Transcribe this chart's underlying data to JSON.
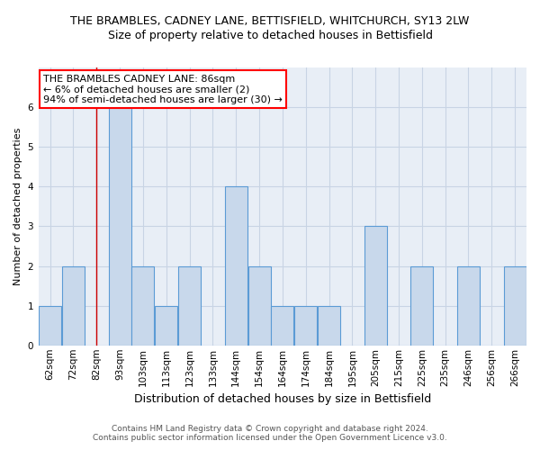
{
  "title": "THE BRAMBLES, CADNEY LANE, BETTISFIELD, WHITCHURCH, SY13 2LW",
  "subtitle": "Size of property relative to detached houses in Bettisfield",
  "xlabel": "Distribution of detached houses by size in Bettisfield",
  "ylabel": "Number of detached properties",
  "footnote1": "Contains HM Land Registry data © Crown copyright and database right 2024.",
  "footnote2": "Contains public sector information licensed under the Open Government Licence v3.0.",
  "bar_labels": [
    "62sqm",
    "72sqm",
    "82sqm",
    "93sqm",
    "103sqm",
    "113sqm",
    "123sqm",
    "133sqm",
    "144sqm",
    "154sqm",
    "164sqm",
    "174sqm",
    "184sqm",
    "195sqm",
    "205sqm",
    "215sqm",
    "225sqm",
    "235sqm",
    "246sqm",
    "256sqm",
    "266sqm"
  ],
  "bar_heights": [
    1,
    2,
    0,
    6,
    2,
    1,
    2,
    0,
    4,
    2,
    1,
    1,
    1,
    0,
    3,
    0,
    2,
    0,
    2,
    0,
    2
  ],
  "bar_color": "#c8d8eb",
  "bar_edge_color": "#5b9bd5",
  "grid_color": "#c8d4e4",
  "bg_color": "#e8eef6",
  "red_line_x": 2,
  "annotation_title": "THE BRAMBLES CADNEY LANE: 86sqm",
  "annotation_line1": "← 6% of detached houses are smaller (2)",
  "annotation_line2": "94% of semi-detached houses are larger (30) →",
  "ylim": [
    0,
    7
  ],
  "yticks": [
    0,
    1,
    2,
    3,
    4,
    5,
    6,
    7
  ],
  "title_fontsize": 9,
  "subtitle_fontsize": 9,
  "ylabel_fontsize": 8,
  "xlabel_fontsize": 9,
  "tick_fontsize": 7.5,
  "annotation_fontsize": 8
}
